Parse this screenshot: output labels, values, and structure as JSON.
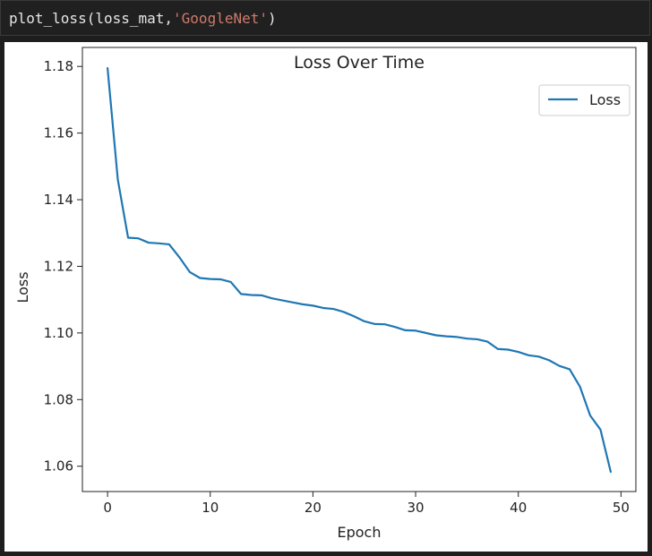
{
  "code_cell": {
    "func": "plot_loss(loss_mat,",
    "arg": "'GoogleNet'",
    "close": ")"
  },
  "chart_data": {
    "type": "line",
    "title": "Loss Over Time",
    "xlabel": "Epoch",
    "ylabel": "Loss",
    "xlim": [
      -2.45,
      51.45
    ],
    "ylim": [
      1.0524,
      1.1857
    ],
    "xticks": [
      0,
      10,
      20,
      30,
      40,
      50
    ],
    "yticks": [
      1.06,
      1.08,
      1.1,
      1.12,
      1.14,
      1.16,
      1.18
    ],
    "ytick_labels": [
      "1.06",
      "1.08",
      "1.10",
      "1.12",
      "1.14",
      "1.16",
      "1.18"
    ],
    "legend": {
      "position": "top-right",
      "entries": [
        "Loss"
      ]
    },
    "grid": false,
    "series": [
      {
        "name": "Loss",
        "color": "#1f77b4",
        "x": [
          0,
          1,
          2,
          3,
          4,
          5,
          6,
          7,
          8,
          9,
          10,
          11,
          12,
          13,
          14,
          15,
          16,
          17,
          18,
          19,
          20,
          21,
          22,
          23,
          24,
          25,
          26,
          27,
          28,
          29,
          30,
          31,
          32,
          33,
          34,
          35,
          36,
          37,
          38,
          39,
          40,
          41,
          42,
          43,
          44,
          45,
          46,
          47,
          48,
          49
        ],
        "y": [
          1.1795,
          1.146,
          1.1286,
          1.1284,
          1.1271,
          1.1269,
          1.1266,
          1.1227,
          1.1183,
          1.1165,
          1.1162,
          1.1161,
          1.1153,
          1.1117,
          1.1114,
          1.1113,
          1.1104,
          1.1098,
          1.1092,
          1.1086,
          1.1082,
          1.1075,
          1.1072,
          1.1063,
          1.105,
          1.1035,
          1.1027,
          1.1026,
          1.1018,
          1.1008,
          1.1007,
          1.1,
          1.0993,
          1.099,
          1.0988,
          1.0983,
          1.0981,
          1.0974,
          1.0952,
          1.095,
          1.0943,
          1.0933,
          1.0929,
          1.0918,
          1.0901,
          1.0891,
          1.0839,
          1.0752,
          1.071,
          1.0583
        ]
      }
    ]
  }
}
